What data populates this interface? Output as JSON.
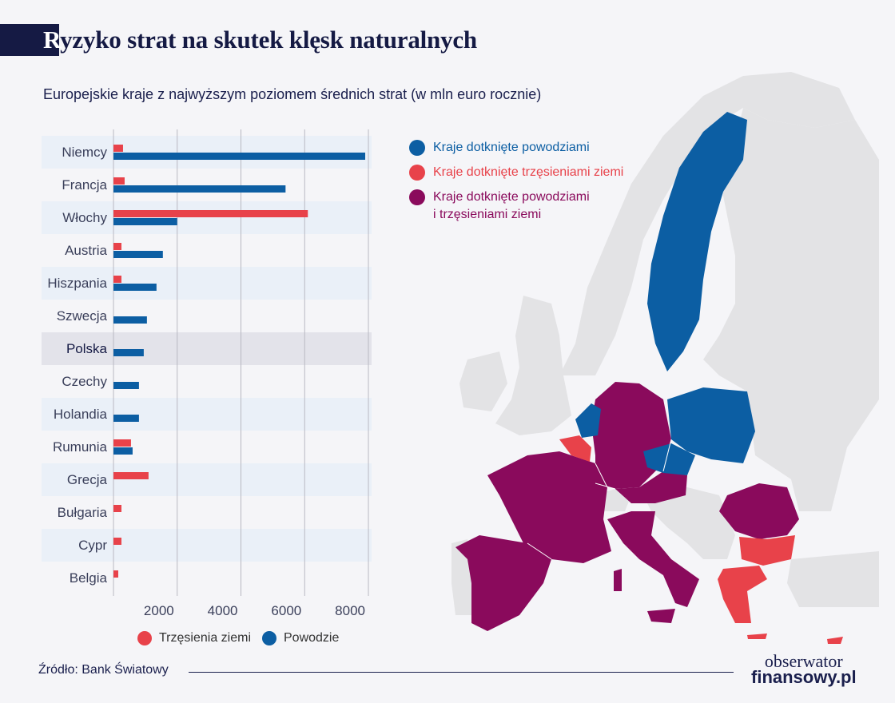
{
  "header": {
    "title_first": "R",
    "title_rest": "yzyko strat na skutek klęsk naturalnych",
    "subtitle": "Europejskie kraje z najwyższym poziomem średnich strat (w mln euro rocznie)"
  },
  "colors": {
    "earthquake": "#e8424a",
    "flood": "#0c5ea3",
    "both": "#8a0a5c",
    "navy": "#151a44",
    "land": "#e3e3e5"
  },
  "map_legend": {
    "flood": "Kraje dotknięte powodziami",
    "earthquake": "Kraje dotknięte trzęsieniami ziemi",
    "both_line1": "Kraje dotknięte powodziami",
    "both_line2": "i trzęsieniami ziemi"
  },
  "chart_legend": {
    "earthquake": "Trzęsienia ziemi",
    "flood": "Powodzie"
  },
  "footer": {
    "source": "Źródło: Bank Światowy",
    "logo_line1": "obserwator",
    "logo_line2": "finansowy.pl"
  },
  "chart_data": {
    "type": "bar",
    "orientation": "horizontal",
    "categories": [
      "Niemcy",
      "Francja",
      "Włochy",
      "Austria",
      "Hiszpania",
      "Szwecja",
      "Polska",
      "Czechy",
      "Holandia",
      "Rumunia",
      "Grecja",
      "Bułgaria",
      "Cypr",
      "Belgia"
    ],
    "highlight": "Polska",
    "series": [
      {
        "name": "Trzęsienia ziemi",
        "values": [
          300,
          350,
          6100,
          250,
          250,
          0,
          0,
          0,
          0,
          550,
          1100,
          250,
          250,
          150
        ]
      },
      {
        "name": "Powodzie",
        "values": [
          7900,
          5400,
          2000,
          1550,
          1350,
          1050,
          950,
          800,
          800,
          600,
          0,
          0,
          0,
          0
        ]
      }
    ],
    "xlim": [
      0,
      8100
    ],
    "xticks": [
      2000,
      4000,
      6000,
      8000
    ],
    "grid": true,
    "legend_position": "bottom"
  }
}
